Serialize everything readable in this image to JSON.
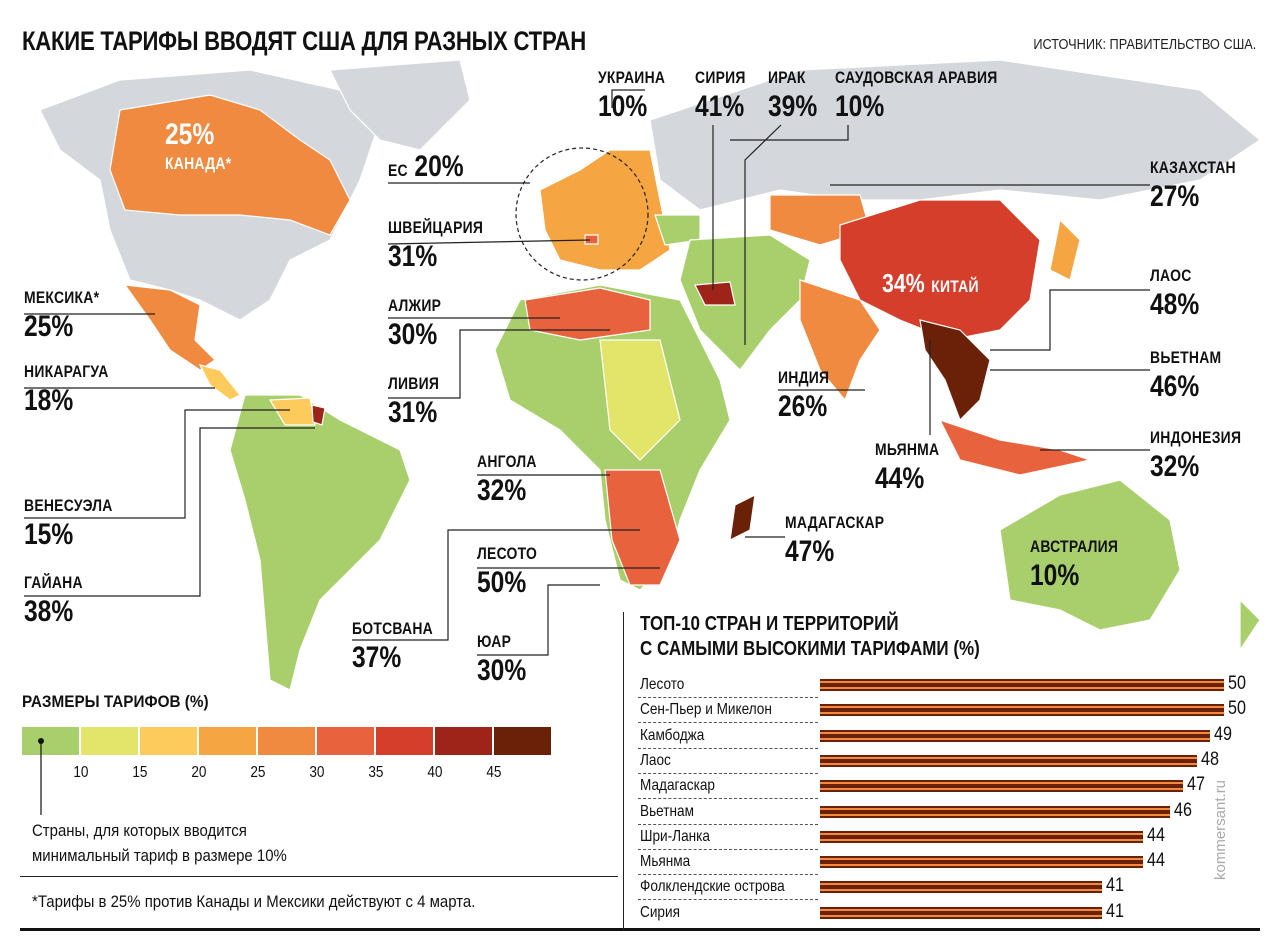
{
  "title": "КАКИЕ ТАРИФЫ ВВОДЯТ США ДЛЯ РАЗНЫХ СТРАН",
  "source": "ИСТОЧНИК: ПРАВИТЕЛЬСТВО США.",
  "colors": {
    "base_gray": "#d4d7dc",
    "min_green": "#a8cf6c",
    "accent_dark": "#6b2108"
  },
  "map_labels": [
    {
      "id": "canada",
      "name": "КАНАДА*",
      "value": "25%"
    },
    {
      "id": "ukraine",
      "name": "УКРАИНА",
      "value": "10%"
    },
    {
      "id": "syria",
      "name": "СИРИЯ",
      "value": "41%"
    },
    {
      "id": "iraq",
      "name": "ИРАК",
      "value": "39%"
    },
    {
      "id": "saudi",
      "name": "САУДОВСКАЯ АРАВИЯ",
      "value": "10%"
    },
    {
      "id": "eu",
      "name": "ЕС",
      "value": "20%"
    },
    {
      "id": "switzerland",
      "name": "ШВЕЙЦАРИЯ",
      "value": "31%"
    },
    {
      "id": "kazakhstan",
      "name": "КАЗАХСТАН",
      "value": "27%"
    },
    {
      "id": "mexico",
      "name": "МЕКСИКА*",
      "value": "25%"
    },
    {
      "id": "algeria",
      "name": "АЛЖИР",
      "value": "30%"
    },
    {
      "id": "laos",
      "name": "ЛАОС",
      "value": "48%"
    },
    {
      "id": "china",
      "name": "КИТАЙ",
      "value": "34%"
    },
    {
      "id": "nicaragua",
      "name": "НИКАРАГУА",
      "value": "18%"
    },
    {
      "id": "libya",
      "name": "ЛИВИЯ",
      "value": "31%"
    },
    {
      "id": "vietnam",
      "name": "ВЬЕТНАМ",
      "value": "46%"
    },
    {
      "id": "india",
      "name": "ИНДИЯ",
      "value": "26%"
    },
    {
      "id": "indonesia",
      "name": "ИНДОНЕЗИЯ",
      "value": "32%"
    },
    {
      "id": "myanmar",
      "name": "МЬЯНМА",
      "value": "44%"
    },
    {
      "id": "angola",
      "name": "АНГОЛА",
      "value": "32%"
    },
    {
      "id": "venezuela",
      "name": "ВЕНЕСУЭЛА",
      "value": "15%"
    },
    {
      "id": "madagascar",
      "name": "МАДАГАСКАР",
      "value": "47%"
    },
    {
      "id": "australia",
      "name": "АВСТРАЛИЯ",
      "value": "10%"
    },
    {
      "id": "lesotho",
      "name": "ЛЕСОТО",
      "value": "50%"
    },
    {
      "id": "guyana",
      "name": "ГАЙАНА",
      "value": "38%"
    },
    {
      "id": "botswana",
      "name": "БОТСВАНА",
      "value": "37%"
    },
    {
      "id": "south_africa",
      "name": "ЮАР",
      "value": "30%"
    }
  ],
  "legend": {
    "title": "РАЗМЕРЫ ТАРИФОВ (%)",
    "colors": [
      "#a8cf6c",
      "#e3e56a",
      "#fccb5c",
      "#f5a542",
      "#f08a40",
      "#e8623e",
      "#d43e2a",
      "#9e2318",
      "#6b2108"
    ],
    "ticks": [
      "10",
      "15",
      "20",
      "25",
      "30",
      "35",
      "40",
      "45"
    ],
    "note_line1": "Страны, для которых вводится",
    "note_line2": "минимальный тариф в размере 10%"
  },
  "footnote": "*Тарифы в 25% против Канады и Мексики действуют с 4 марта.",
  "chart_data": {
    "type": "bar",
    "orientation": "horizontal",
    "title": "ТОП-10 СТРАН И ТЕРРИТОРИЙ С САМЫМИ ВЫСОКИМИ ТАРИФАМИ (%)",
    "title_line1": "ТОП-10 СТРАН И ТЕРРИТОРИЙ",
    "title_line2": "С САМЫМИ ВЫСОКИМИ ТАРИФАМИ (%)",
    "categories": [
      "Лесото",
      "Сен-Пьер и Микелон",
      "Камбоджа",
      "Лаос",
      "Мадагаскар",
      "Вьетнам",
      "Шри-Ланка",
      "Мьянма",
      "Фолклендские острова",
      "Сирия"
    ],
    "values": [
      50,
      50,
      49,
      48,
      47,
      46,
      44,
      44,
      41,
      41
    ],
    "bar_color": "#6b2108",
    "stripe_color": "#f08a40"
  },
  "brand": "kommersant.ru"
}
